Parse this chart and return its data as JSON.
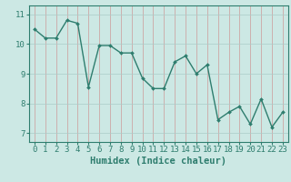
{
  "x": [
    0,
    1,
    2,
    3,
    4,
    5,
    6,
    7,
    8,
    9,
    10,
    11,
    12,
    13,
    14,
    15,
    16,
    17,
    18,
    19,
    20,
    21,
    22,
    23
  ],
  "y": [
    10.5,
    10.2,
    10.2,
    10.8,
    10.7,
    8.55,
    9.95,
    9.95,
    9.7,
    9.7,
    8.85,
    8.5,
    8.5,
    9.4,
    9.6,
    9.0,
    9.3,
    7.45,
    7.7,
    7.9,
    7.3,
    8.15,
    7.2,
    7.7
  ],
  "line_color": "#2e7d6e",
  "marker": "D",
  "marker_size": 2,
  "bg_color": "#cce8e4",
  "grid_color": "#aaccc8",
  "axis_color": "#2e7d6e",
  "xlabel": "Humidex (Indice chaleur)",
  "xlim": [
    -0.5,
    23.5
  ],
  "ylim": [
    6.7,
    11.3
  ],
  "yticks": [
    7,
    8,
    9,
    10,
    11
  ],
  "xticks": [
    0,
    1,
    2,
    3,
    4,
    5,
    6,
    7,
    8,
    9,
    10,
    11,
    12,
    13,
    14,
    15,
    16,
    17,
    18,
    19,
    20,
    21,
    22,
    23
  ],
  "xlabel_fontsize": 7.5,
  "tick_fontsize": 6.5,
  "tick_color": "#2e7d6e",
  "line_width": 1.0
}
